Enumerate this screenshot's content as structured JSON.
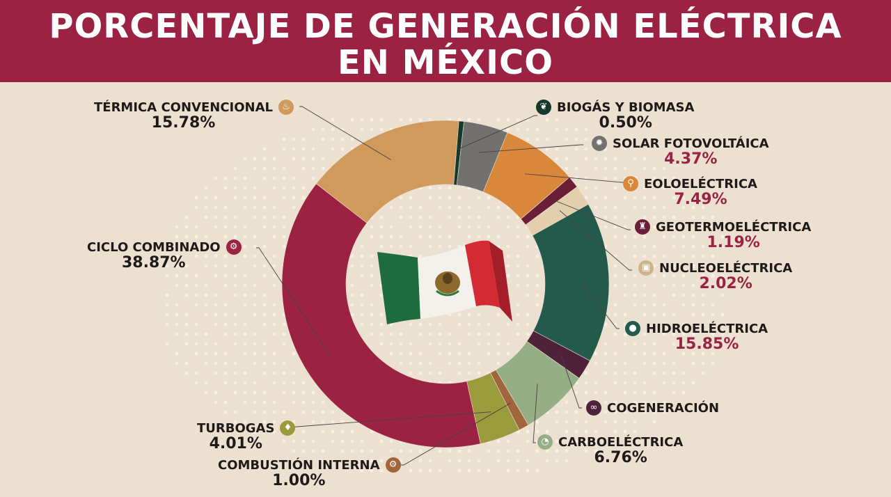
{
  "title": {
    "line1": "PORCENTAJE DE GENERACIÓN ELÉCTRICA",
    "line2": "EN MÉXICO"
  },
  "chart_data": {
    "type": "pie",
    "donut": true,
    "slices": [
      {
        "label": "TÉRMICA CONVENCIONAL",
        "value": 15.78,
        "display": "15.78%",
        "color": "#cf9a5c",
        "icon": "fire-icon"
      },
      {
        "label": "BIOGÁS Y BIOMASA",
        "value": 0.5,
        "display": "0.50%",
        "color": "#17382c",
        "icon": "leaf-icon"
      },
      {
        "label": "SOLAR FOTOVOLTÁICA",
        "value": 4.37,
        "display": "4.37%",
        "color": "#727170",
        "icon": "sun-icon"
      },
      {
        "label": "EOLOELÉCTRICA",
        "value": 7.49,
        "display": "7.49%",
        "color": "#d9873a",
        "icon": "wind-turbine-icon"
      },
      {
        "label": "GEOTERMOELÉCTRICA",
        "value": 1.19,
        "display": "1.19%",
        "color": "#6b1e37",
        "icon": "geothermal-icon"
      },
      {
        "label": "NUCLEOELÉCTRICA",
        "value": 2.02,
        "display": "2.02%",
        "color": "#e3cfae",
        "icon": "nuclear-plant-icon"
      },
      {
        "label": "HIDROELÉCTRICA",
        "value": 15.85,
        "display": "15.85%",
        "color": "#245a4c",
        "icon": "water-drop-icon"
      },
      {
        "label": "COGENERACIÓN",
        "value": 2.0,
        "display": "",
        "color": "#4e2339",
        "icon": "cogeneration-icon"
      },
      {
        "label": "CARBOELÉCTRICA",
        "value": 6.76,
        "display": "6.76%",
        "color": "#95ae86",
        "icon": "coal-icon"
      },
      {
        "label": "COMBUSTIÓN INTERNA",
        "value": 1.0,
        "display": "1.00%",
        "color": "#a0653b",
        "icon": "engine-icon"
      },
      {
        "label": "TURBOGAS",
        "value": 4.01,
        "display": "4.01%",
        "color": "#9b9a3c",
        "icon": "gas-flame-icon"
      },
      {
        "label": "CICLO COMBINADO",
        "value": 38.87,
        "display": "38.87%",
        "color": "#9b2242",
        "icon": "gears-icon"
      }
    ]
  },
  "colors": {
    "header_bg": "#9b2242",
    "page_bg": "#ece1d1",
    "accent_pct": "#9b2242",
    "dark_pct": "#1f1a1a"
  },
  "center_image": "mexican-flag-icon"
}
